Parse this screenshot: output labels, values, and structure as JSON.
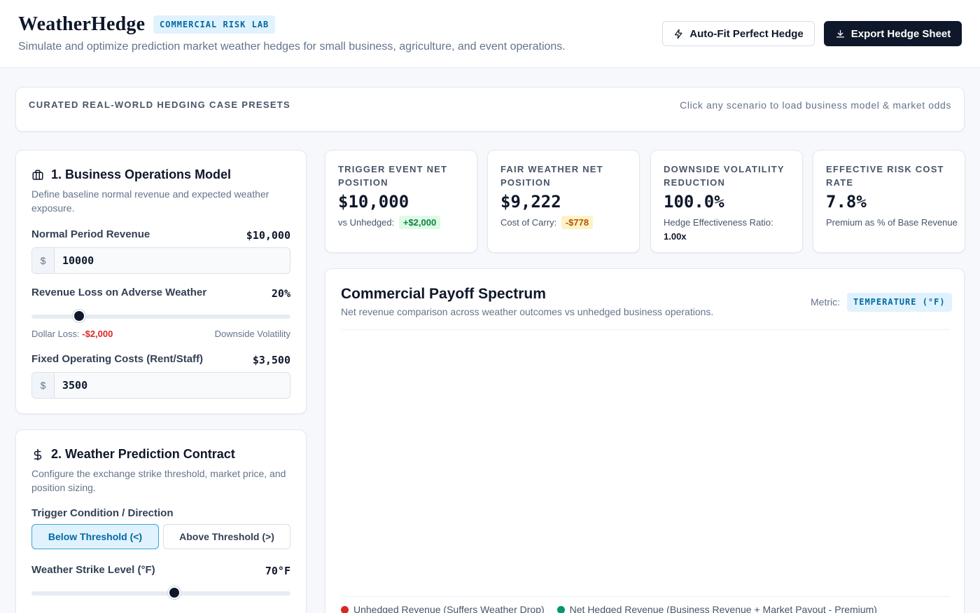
{
  "header": {
    "brand": "WeatherHedge",
    "badge": "COMMERCIAL RISK LAB",
    "tagline": "Simulate and optimize prediction market weather hedges for small business, agriculture, and event operations.",
    "auto_fit_label": "Auto-Fit Perfect Hedge",
    "export_label": "Export Hedge Sheet"
  },
  "presets": {
    "title": "CURATED REAL-WORLD HEDGING CASE PRESETS",
    "hint": "Click any scenario to load business model & market odds"
  },
  "business_model": {
    "title": "1. Business Operations Model",
    "description": "Define baseline normal revenue and expected weather exposure.",
    "normal_revenue_label": "Normal Period Revenue",
    "normal_revenue_display": "$10,000",
    "normal_revenue_value": "10000",
    "revenue_loss_label": "Revenue Loss on Adverse Weather",
    "revenue_loss_display": "20%",
    "revenue_loss_pct": 20,
    "dollar_loss_label": "Dollar Loss:",
    "dollar_loss_value": "-$2,000",
    "downside_label": "Downside Volatility",
    "fixed_costs_label": "Fixed Operating Costs (Rent/Staff)",
    "fixed_costs_display": "$3,500",
    "fixed_costs_value": "3500",
    "currency_prefix": "$"
  },
  "contract": {
    "title": "2. Weather Prediction Contract",
    "description": "Configure the exchange strike threshold, market price, and position sizing.",
    "trigger_label": "Trigger Condition / Direction",
    "below_label": "Below Threshold (<)",
    "above_label": "Above Threshold (>)",
    "strike_label": "Weather Strike Level (°F)",
    "strike_display": "70°F",
    "strike_value": 70
  },
  "kpis": [
    {
      "label": "Trigger Event Net Position",
      "value": "$10,000",
      "sub_prefix": "vs Unhedged:",
      "pill": "+$2,000"
    },
    {
      "label": "Fair Weather Net Position",
      "value": "$9,222",
      "sub_prefix": "Cost of Carry:",
      "pill": "-$778"
    },
    {
      "label": "Downside Volatility Reduction",
      "value": "100.0%",
      "sub_prefix": "Hedge Effectiveness Ratio:",
      "sub_bold": "1.00x"
    },
    {
      "label": "Effective Risk Cost Rate",
      "value": "7.8%",
      "sub_prefix": "Premium as % of Base Revenue"
    }
  ],
  "chart": {
    "title": "Commercial Payoff Spectrum",
    "subtitle": "Net revenue comparison across weather outcomes vs unhedged business operations.",
    "metric_label": "Metric:",
    "metric_value": "TEMPERATURE (°F)",
    "legend": [
      {
        "label": "Unhedged Revenue (Suffers Weather Drop)",
        "color": "#dc2626"
      },
      {
        "label": "Net Hedged Revenue (Business Revenue + Market Payout - Premium)",
        "color": "#059669"
      }
    ]
  },
  "colors": {
    "accent": "#0369a1",
    "dark": "#0f172a",
    "positive": "#15803d",
    "negative": "#dc2626"
  }
}
